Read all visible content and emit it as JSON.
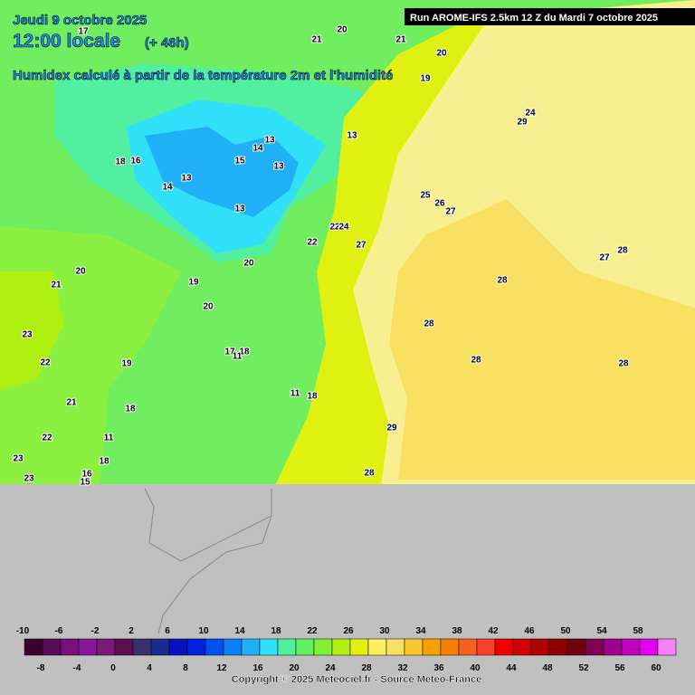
{
  "header": {
    "date": "Jeudi 9 octobre 2025",
    "time": "12:00 locale",
    "lead": "(+ 46h)",
    "subtitle": "Humidex calculé à partir de la température 2m et l'humidité",
    "run": "Run AROME-IFS 2.5km 12 Z du Mardi 7 octobre 2025"
  },
  "contour_labels": [
    17,
    21,
    20,
    21,
    20,
    19,
    13,
    14,
    13,
    15,
    13,
    18,
    16,
    13,
    14,
    13,
    22,
    24,
    22,
    27,
    25,
    26,
    27,
    28,
    27,
    28,
    20,
    20,
    21,
    19,
    20,
    28,
    23,
    17,
    18,
    11,
    22,
    19,
    28,
    28,
    18,
    21,
    11,
    18,
    22,
    11,
    29,
    23,
    23,
    16,
    15,
    18,
    28,
    29,
    24
  ],
  "scale": {
    "values": [
      -10,
      -8,
      -6,
      -4,
      -2,
      0,
      2,
      4,
      6,
      8,
      10,
      12,
      14,
      16,
      18,
      20,
      22,
      24,
      26,
      28,
      30,
      32,
      34,
      36,
      38,
      40,
      42,
      44,
      46,
      48,
      50,
      52,
      54,
      56,
      58,
      60
    ],
    "colors": [
      "#3c0030",
      "#5a0a5a",
      "#78107a",
      "#8c1496",
      "#7a1a78",
      "#5a1050",
      "#3a3070",
      "#1a2a90",
      "#0a10c0",
      "#0020e0",
      "#0050f0",
      "#0a80f8",
      "#20b0f8",
      "#30e0f8",
      "#50f0a0",
      "#60f060",
      "#80f030",
      "#b0f010",
      "#e0f010",
      "#f8f060",
      "#f8e060",
      "#f8c830",
      "#f8a000",
      "#f88000",
      "#f86020",
      "#f84030",
      "#f00000",
      "#d00000",
      "#b00000",
      "#900000",
      "#700010",
      "#800050",
      "#a00090",
      "#c000c0",
      "#e000f0",
      "#f880f8"
    ]
  },
  "footer": {
    "copyright": "Copyright © 2025 Meteociel.fr - Source Meteo-France"
  }
}
